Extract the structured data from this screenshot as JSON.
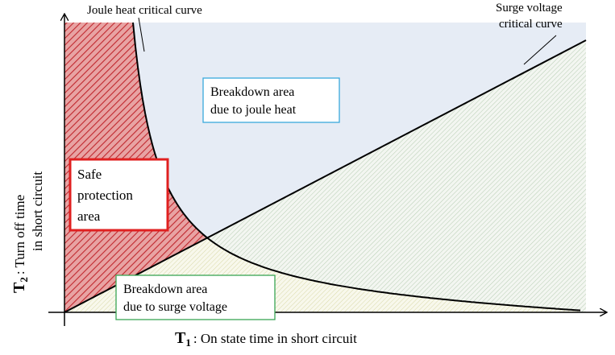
{
  "labels": {
    "joule_curve": "Joule heat critical curve",
    "surge_curve": [
      "Surge voltage",
      "critical curve"
    ],
    "joule_area": [
      "Breakdown area",
      "due to joule heat"
    ],
    "safe_area": [
      "Safe",
      "protection",
      "area"
    ],
    "surge_area": [
      "Breakdown area",
      "due to surge voltage"
    ]
  },
  "axes": {
    "y": {
      "symbol": "T",
      "subscript": "2",
      "lines": [
        ": Turn off time",
        "in short circuit"
      ]
    },
    "x": {
      "symbol": "T",
      "subscript": "1",
      "text": ":  On state time in short circuit"
    }
  }
}
